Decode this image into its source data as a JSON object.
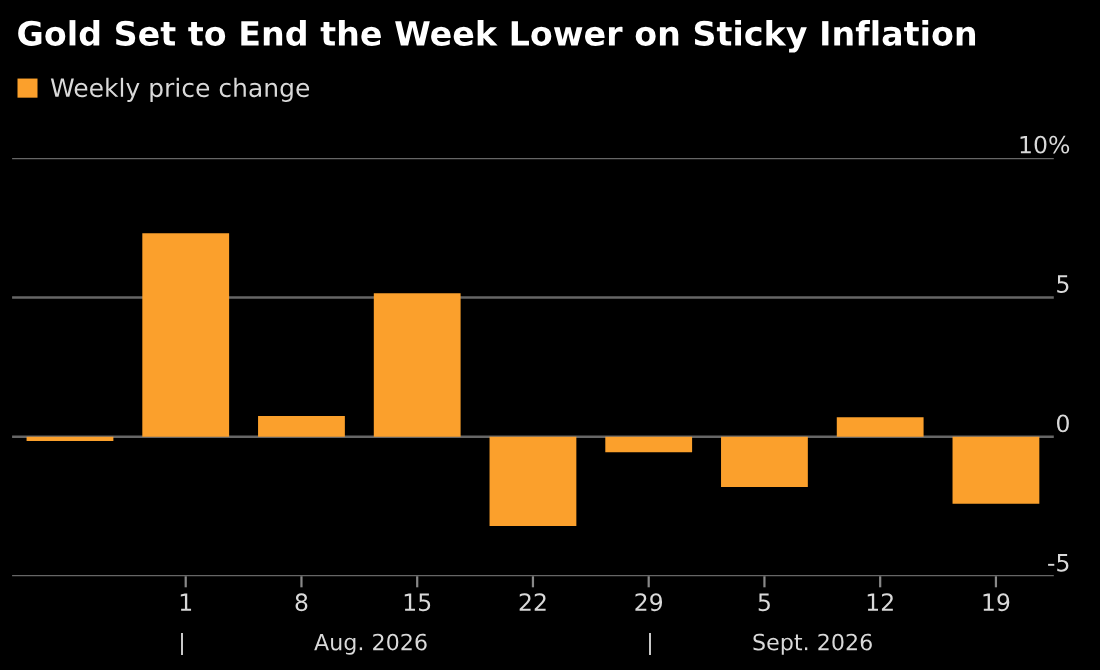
{
  "chart_data": {
    "type": "bar",
    "title": "Gold Set to End the Week Lower on Sticky Inflation",
    "categories": [
      null,
      "1",
      "8",
      "15",
      "22",
      "29",
      "5",
      "12",
      "19"
    ],
    "series": [
      {
        "name": "Weekly price change",
        "color": "#fba02c",
        "values": [
          -0.15,
          7.3,
          0.75,
          5.15,
          -3.2,
          -0.55,
          -1.8,
          0.7,
          -2.4
        ]
      }
    ],
    "ylim": [
      -5,
      10
    ],
    "yticks": [
      -5,
      0,
      5,
      {
        "value": 10,
        "label": "10%"
      }
    ],
    "grid": "y",
    "legend": "top left",
    "annotations": [
      "|",
      "Aug. 2026",
      "|",
      "Sept. 2026"
    ]
  }
}
